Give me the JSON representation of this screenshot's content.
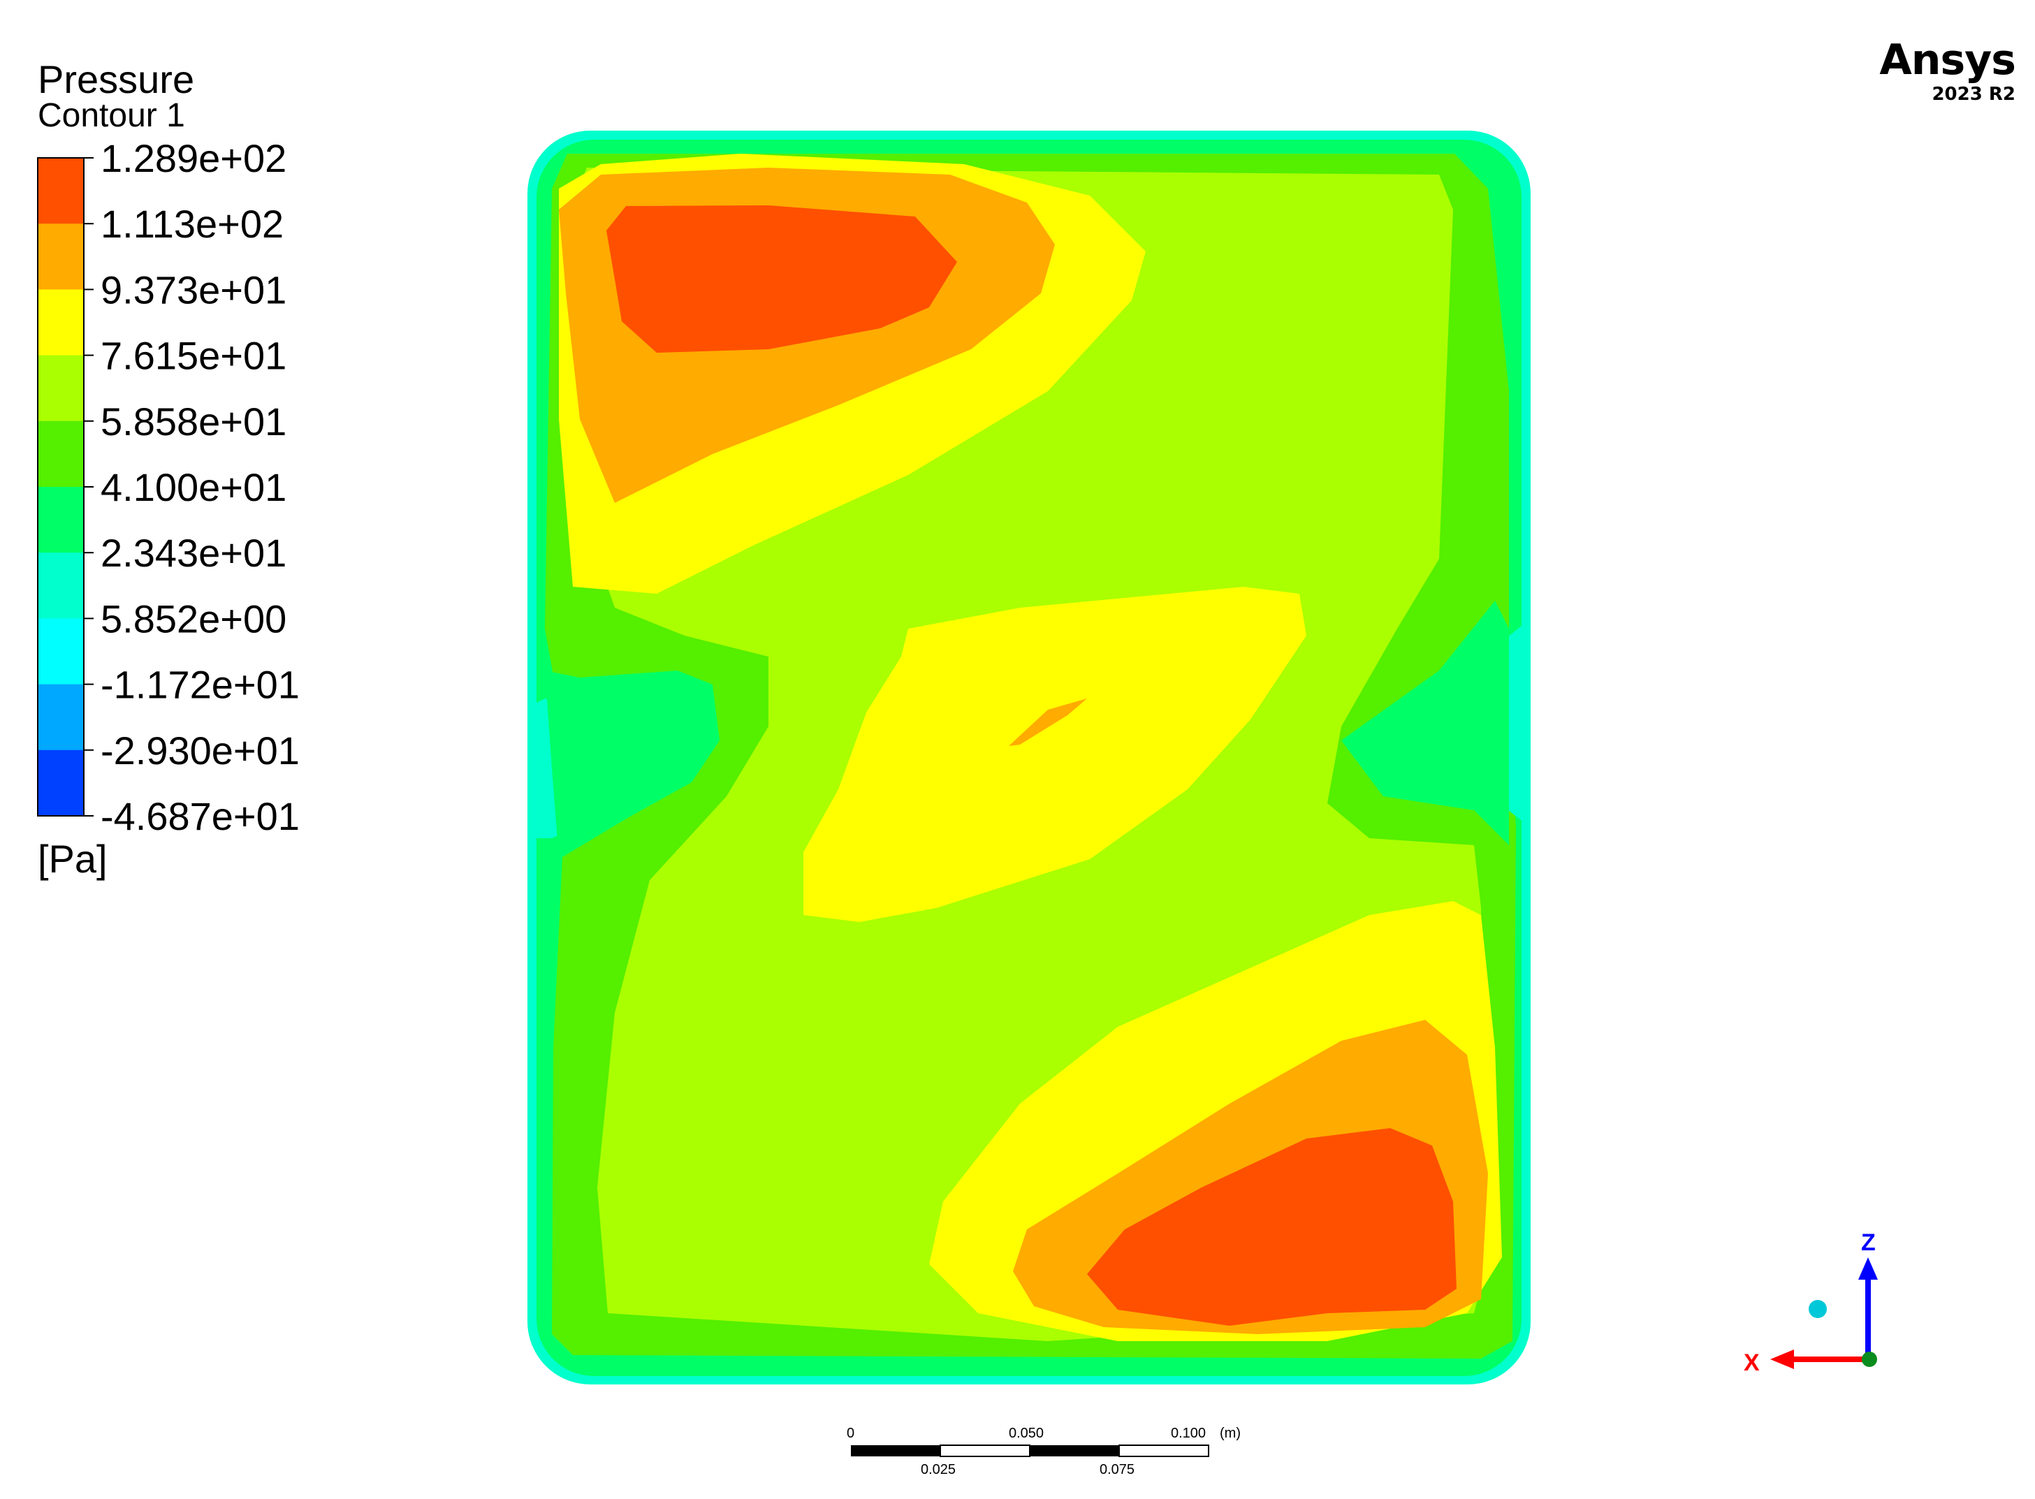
{
  "legend": {
    "title": "Pressure",
    "subtitle": "Contour 1",
    "unit": "[Pa]",
    "levels": [
      "1.289e+02",
      "1.113e+02",
      "9.373e+01",
      "7.615e+01",
      "5.858e+01",
      "4.100e+01",
      "2.343e+01",
      "5.852e+00",
      "-1.172e+01",
      "-2.930e+01",
      "-4.687e+01"
    ],
    "band_colors": [
      "#ff5000",
      "#ffab00",
      "#ffff00",
      "#aaff00",
      "#55ef00",
      "#00ff66",
      "#00ffcc",
      "#00ffff",
      "#00a8ff",
      "#0040ff"
    ]
  },
  "brand": {
    "name": "Ansys",
    "version": "2023 R2"
  },
  "scale_bar": {
    "top_labels": [
      "0",
      "0.050",
      "0.100"
    ],
    "bottom_labels": [
      "0.025",
      "0.075"
    ],
    "unit": "(m)"
  },
  "triad": {
    "z_label": "Z",
    "x_label": "X",
    "z_color": "#0000ff",
    "x_color": "#ff0000"
  },
  "contour": {
    "colors": {
      "outer": "#00ffcc",
      "ring1": "#00ff66",
      "ring2": "#55ef00",
      "base": "#aaff00",
      "yellow": "#ffff00",
      "orange": "#ffab00",
      "red": "#ff5000"
    }
  }
}
